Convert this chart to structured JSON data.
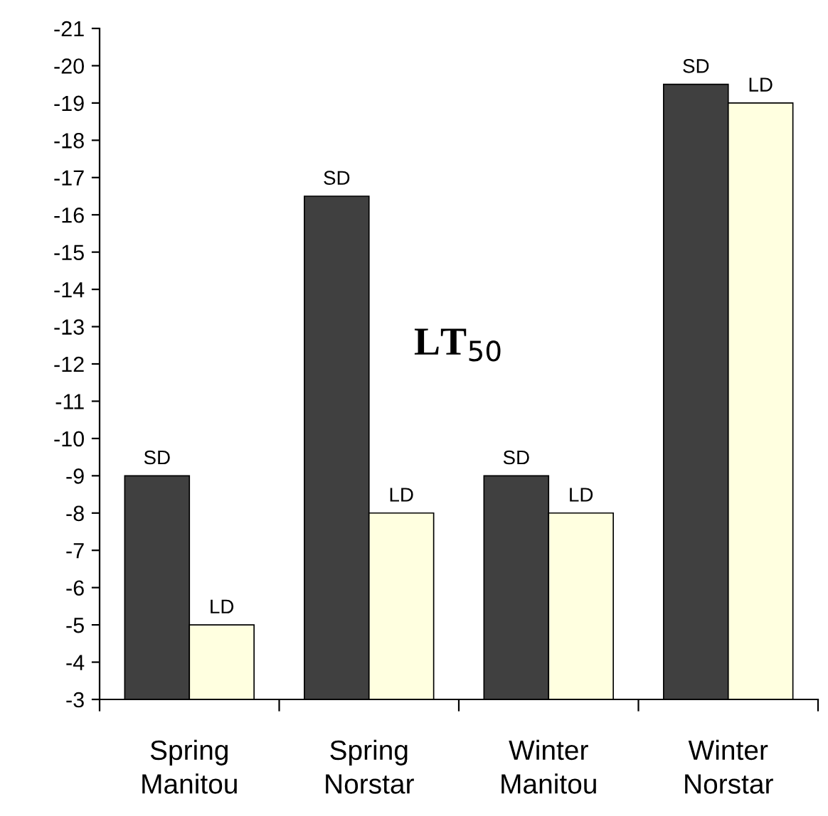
{
  "chart_data": {
    "type": "bar",
    "categories": [
      "Spring\nManitou",
      "Spring\nNorstar",
      "Winter\nManitou",
      "Winter\nNorstar"
    ],
    "series": [
      {
        "name": "SD",
        "color": "#404040",
        "values": [
          -9,
          -16.5,
          -9,
          -19.5
        ]
      },
      {
        "name": "LD",
        "color": "#ffffe0",
        "values": [
          -5,
          -8,
          -8,
          -19
        ]
      }
    ],
    "ylim": [
      -3,
      -21
    ],
    "yticks": [
      -3,
      -4,
      -5,
      -6,
      -7,
      -8,
      -9,
      -10,
      -11,
      -12,
      -13,
      -14,
      -15,
      -16,
      -17,
      -18,
      -19,
      -20,
      -21
    ],
    "annotations": [
      {
        "text": "LT$_{50}$",
        "x": "Spring\nNorstar",
        "y": -12.5
      }
    ],
    "grid": false,
    "legend": false
  }
}
